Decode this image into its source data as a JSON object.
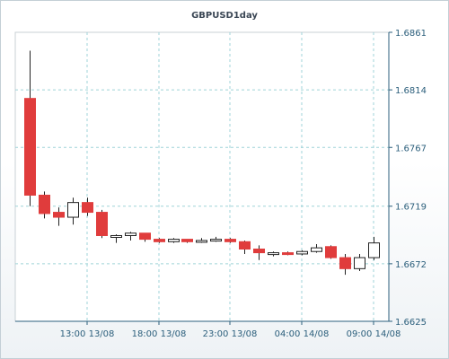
{
  "chart_data": {
    "type": "candlestick",
    "title": "GBPUSD1day",
    "ylim": [
      1.6625,
      1.6861
    ],
    "yticks": [
      1.6625,
      1.6672,
      1.6719,
      1.6767,
      1.6814,
      1.6861
    ],
    "xticks": [
      "13:00 13/08",
      "18:00 13/08",
      "23:00 13/08",
      "04:00 14/08",
      "09:00 14/08"
    ],
    "grid": true,
    "colors": {
      "up": "#ffffff",
      "down": "#e03c3c",
      "wick": "#222222",
      "grid": "#9fd3d8",
      "axis": "#2c5f7c"
    },
    "candles": [
      {
        "open": 1.6807,
        "high": 1.6846,
        "low": 1.6719,
        "close": 1.6728
      },
      {
        "open": 1.6728,
        "high": 1.6731,
        "low": 1.6709,
        "close": 1.6713
      },
      {
        "open": 1.6714,
        "high": 1.6718,
        "low": 1.6703,
        "close": 1.671
      },
      {
        "open": 1.671,
        "high": 1.6726,
        "low": 1.6704,
        "close": 1.6722
      },
      {
        "open": 1.6722,
        "high": 1.6726,
        "low": 1.6711,
        "close": 1.6714
      },
      {
        "open": 1.6714,
        "high": 1.6716,
        "low": 1.6693,
        "close": 1.6695
      },
      {
        "open": 1.6694,
        "high": 1.6696,
        "low": 1.6689,
        "close": 1.6695
      },
      {
        "open": 1.6695,
        "high": 1.6698,
        "low": 1.6691,
        "close": 1.6697
      },
      {
        "open": 1.6697,
        "high": 1.6697,
        "low": 1.669,
        "close": 1.6692
      },
      {
        "open": 1.6692,
        "high": 1.6693,
        "low": 1.6689,
        "close": 1.669
      },
      {
        "open": 1.669,
        "high": 1.6693,
        "low": 1.6689,
        "close": 1.6692
      },
      {
        "open": 1.6692,
        "high": 1.6692,
        "low": 1.6689,
        "close": 1.669
      },
      {
        "open": 1.669,
        "high": 1.6693,
        "low": 1.6689,
        "close": 1.6691
      },
      {
        "open": 1.6691,
        "high": 1.6694,
        "low": 1.669,
        "close": 1.6692
      },
      {
        "open": 1.6692,
        "high": 1.6693,
        "low": 1.6689,
        "close": 1.669
      },
      {
        "open": 1.669,
        "high": 1.6691,
        "low": 1.668,
        "close": 1.6684
      },
      {
        "open": 1.6684,
        "high": 1.6687,
        "low": 1.6675,
        "close": 1.6681
      },
      {
        "open": 1.668,
        "high": 1.6682,
        "low": 1.6678,
        "close": 1.6681
      },
      {
        "open": 1.6681,
        "high": 1.6682,
        "low": 1.6679,
        "close": 1.668
      },
      {
        "open": 1.668,
        "high": 1.6683,
        "low": 1.6679,
        "close": 1.6682
      },
      {
        "open": 1.6682,
        "high": 1.6688,
        "low": 1.6681,
        "close": 1.6685
      },
      {
        "open": 1.6686,
        "high": 1.6687,
        "low": 1.6676,
        "close": 1.6677
      },
      {
        "open": 1.6677,
        "high": 1.668,
        "low": 1.6663,
        "close": 1.6668
      },
      {
        "open": 1.6668,
        "high": 1.668,
        "low": 1.6666,
        "close": 1.6677
      },
      {
        "open": 1.6677,
        "high": 1.6694,
        "low": 1.6675,
        "close": 1.6689
      }
    ]
  }
}
